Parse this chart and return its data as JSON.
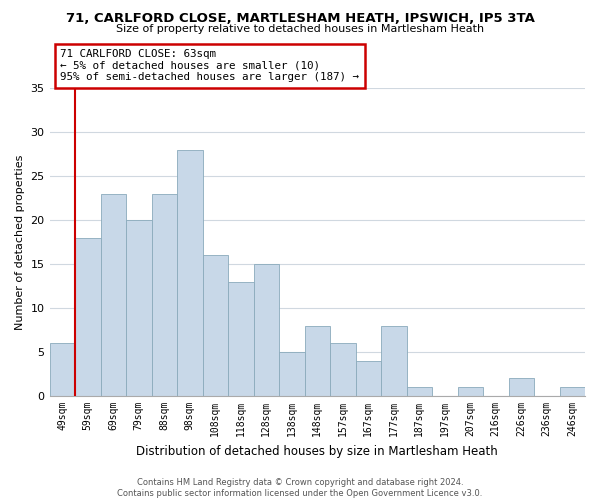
{
  "title1": "71, CARLFORD CLOSE, MARTLESHAM HEATH, IPSWICH, IP5 3TA",
  "title2": "Size of property relative to detached houses in Martlesham Heath",
  "xlabel": "Distribution of detached houses by size in Martlesham Heath",
  "ylabel": "Number of detached properties",
  "bar_labels": [
    "49sqm",
    "59sqm",
    "69sqm",
    "79sqm",
    "88sqm",
    "98sqm",
    "108sqm",
    "118sqm",
    "128sqm",
    "138sqm",
    "148sqm",
    "157sqm",
    "167sqm",
    "177sqm",
    "187sqm",
    "197sqm",
    "207sqm",
    "216sqm",
    "226sqm",
    "236sqm",
    "246sqm"
  ],
  "bar_values": [
    6,
    18,
    23,
    20,
    23,
    28,
    16,
    13,
    15,
    5,
    8,
    6,
    4,
    8,
    1,
    0,
    1,
    0,
    2,
    0,
    1
  ],
  "bar_color": "#c8d8e8",
  "bar_edge_color": "#8aaabb",
  "red_line_after_bar": 0,
  "ylim": [
    0,
    35
  ],
  "yticks": [
    0,
    5,
    10,
    15,
    20,
    25,
    30,
    35
  ],
  "annotation_title": "71 CARLFORD CLOSE: 63sqm",
  "annotation_line1": "← 5% of detached houses are smaller (10)",
  "annotation_line2": "95% of semi-detached houses are larger (187) →",
  "annotation_box_color": "#ffffff",
  "annotation_box_edge": "#cc0000",
  "footer1": "Contains HM Land Registry data © Crown copyright and database right 2024.",
  "footer2": "Contains public sector information licensed under the Open Government Licence v3.0.",
  "red_line_color": "#cc0000",
  "background_color": "#ffffff",
  "grid_color": "#d0d8e0"
}
